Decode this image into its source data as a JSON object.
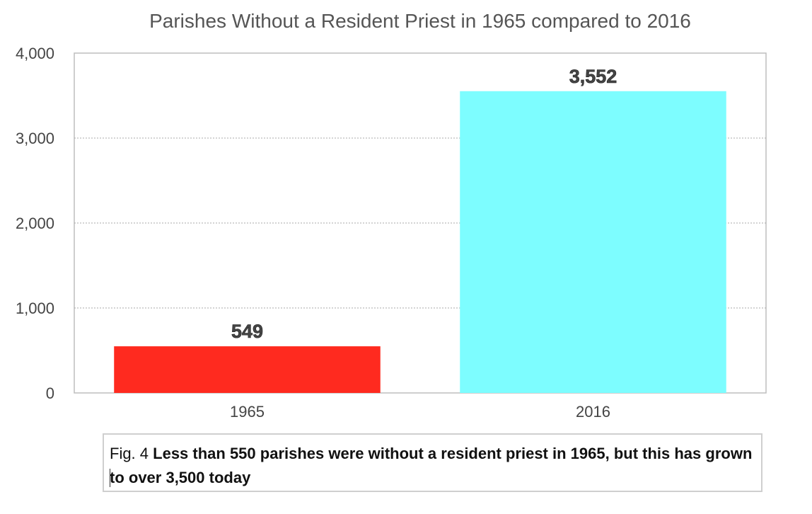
{
  "chart_data": {
    "type": "bar",
    "title": "Parishes Without a Resident Priest in 1965 compared to 2016",
    "categories": [
      "1965",
      "2016"
    ],
    "values": [
      549,
      3552
    ],
    "data_labels": [
      "549",
      "3,552"
    ],
    "colors": [
      "#ff2a1f",
      "#7dfdff"
    ],
    "ylim": [
      0,
      4000
    ],
    "yticks": [
      0,
      1000,
      2000,
      3000,
      4000
    ],
    "ytick_labels": [
      "0",
      "1,000",
      "2,000",
      "3,000",
      "4,000"
    ],
    "xlabel": "",
    "ylabel": "",
    "grid": true
  },
  "caption": {
    "prefix": "Fig. 4 ",
    "text": "Less than 550 parishes were without a resident priest in 1965, but this has grown to over 3,500 today"
  }
}
